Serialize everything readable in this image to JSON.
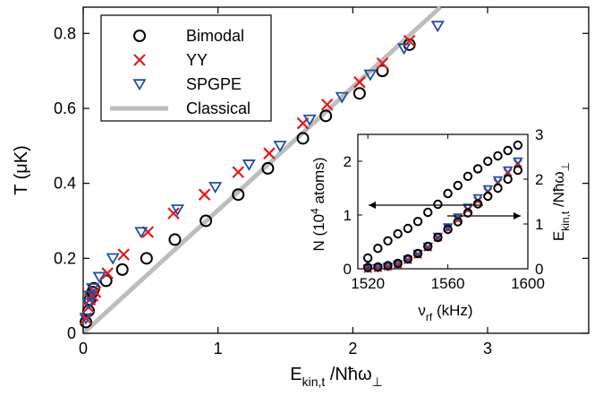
{
  "chart_data": [
    {
      "type": "scatter",
      "xlabel": "E_kin,t / Nħω⊥",
      "ylabel": "T  (μK)",
      "xlim": [
        0,
        3.75
      ],
      "ylim": [
        0,
        0.87
      ],
      "xticks": [
        "0",
        "1",
        "2",
        "3"
      ],
      "yticks": [
        "0",
        "0.2",
        "0.4",
        "0.6",
        "0.8"
      ],
      "grid": false,
      "legend_position": "top-left",
      "series": [
        {
          "name": "Bimodal",
          "marker": "circle",
          "color": "#000000",
          "x": [
            0.02,
            0.04,
            0.05,
            0.07,
            0.08,
            0.17,
            0.29,
            0.47,
            0.68,
            0.91,
            1.15,
            1.37,
            1.63,
            1.8,
            2.05,
            2.22,
            2.42
          ],
          "y": [
            0.03,
            0.06,
            0.09,
            0.11,
            0.12,
            0.14,
            0.17,
            0.2,
            0.25,
            0.3,
            0.37,
            0.44,
            0.52,
            0.58,
            0.64,
            0.7,
            0.77
          ]
        },
        {
          "name": "YY",
          "marker": "cross",
          "color": "#e31a1c",
          "x": [
            0.02,
            0.04,
            0.05,
            0.07,
            0.09,
            0.18,
            0.3,
            0.48,
            0.67,
            0.9,
            1.15,
            1.38,
            1.63,
            1.81,
            2.05,
            2.22,
            2.42
          ],
          "y": [
            0.04,
            0.07,
            0.09,
            0.1,
            0.11,
            0.16,
            0.21,
            0.27,
            0.32,
            0.37,
            0.43,
            0.48,
            0.56,
            0.61,
            0.67,
            0.72,
            0.78
          ]
        },
        {
          "name": "SPGPE",
          "marker": "triangle-down",
          "color": "#1f4fa5",
          "x": [
            0.02,
            0.04,
            0.05,
            0.07,
            0.12,
            0.22,
            0.43,
            0.7,
            0.98,
            1.23,
            1.46,
            1.68,
            1.92,
            2.13,
            2.38,
            2.63
          ],
          "y": [
            0.04,
            0.08,
            0.1,
            0.12,
            0.15,
            0.2,
            0.27,
            0.33,
            0.39,
            0.45,
            0.5,
            0.57,
            0.63,
            0.69,
            0.76,
            0.82
          ]
        },
        {
          "name": "Classical",
          "marker": "line",
          "color": "#bdbdbd",
          "x": [
            0,
            2.65
          ],
          "y": [
            0,
            0.87
          ]
        }
      ]
    },
    {
      "type": "scatter",
      "inset": true,
      "xlabel": "ν_rf (kHz)",
      "ylabel_left": "N (10^4 atoms)",
      "ylabel_right": "E_kin,t / Nħω⊥",
      "xlim": [
        1515,
        1600
      ],
      "ylim_left": [
        0,
        2.5
      ],
      "ylim_right": [
        0,
        3
      ],
      "xticks": [
        "1520",
        "1560",
        "1600"
      ],
      "yticks_left": [
        "0",
        "1",
        "2"
      ],
      "yticks_right": [
        "0",
        "1",
        "2",
        "3"
      ],
      "series": [
        {
          "name": "N",
          "axis": "left",
          "marker": "circle",
          "color": "#000000",
          "x": [
            1520,
            1525,
            1530,
            1535,
            1540,
            1545,
            1550,
            1555,
            1560,
            1565,
            1570,
            1575,
            1580,
            1585,
            1590,
            1595
          ],
          "y": [
            0.2,
            0.38,
            0.52,
            0.65,
            0.75,
            0.88,
            1.05,
            1.2,
            1.4,
            1.55,
            1.72,
            1.86,
            2.0,
            2.1,
            2.2,
            2.3
          ]
        },
        {
          "name": "E_kin,t YY",
          "axis": "right",
          "marker": "cross",
          "color": "#e31a1c",
          "x": [
            1520,
            1525,
            1530,
            1535,
            1540,
            1545,
            1550,
            1555,
            1560,
            1565,
            1570,
            1575,
            1580,
            1585,
            1590,
            1595
          ],
          "y": [
            0.0,
            0.02,
            0.05,
            0.1,
            0.2,
            0.32,
            0.48,
            0.7,
            0.9,
            1.1,
            1.32,
            1.52,
            1.72,
            1.92,
            2.15,
            2.35
          ]
        },
        {
          "name": "E_kin,t SPGPE",
          "axis": "right",
          "marker": "triangle-down",
          "color": "#1f4fa5",
          "x": [
            1520,
            1525,
            1530,
            1535,
            1540,
            1545,
            1550,
            1555,
            1560,
            1565,
            1570,
            1575,
            1580,
            1585,
            1590,
            1595
          ],
          "y": [
            0.01,
            0.02,
            0.05,
            0.1,
            0.21,
            0.34,
            0.5,
            0.72,
            0.93,
            1.15,
            1.37,
            1.58,
            1.78,
            1.98,
            2.2,
            2.4
          ]
        },
        {
          "name": "E_kin,t Bimodal",
          "axis": "right",
          "marker": "circle",
          "color": "#000000",
          "x": [
            1520,
            1525,
            1530,
            1535,
            1540,
            1545,
            1550,
            1555,
            1560,
            1565,
            1570,
            1575,
            1580,
            1585,
            1590,
            1595
          ],
          "y": [
            0.03,
            0.04,
            0.07,
            0.12,
            0.22,
            0.34,
            0.5,
            0.7,
            0.88,
            1.05,
            1.25,
            1.45,
            1.62,
            1.8,
            2.0,
            2.2
          ]
        }
      ],
      "annotations": [
        "arrow-left-to-N-axis",
        "arrow-right-to-E-axis"
      ]
    }
  ]
}
